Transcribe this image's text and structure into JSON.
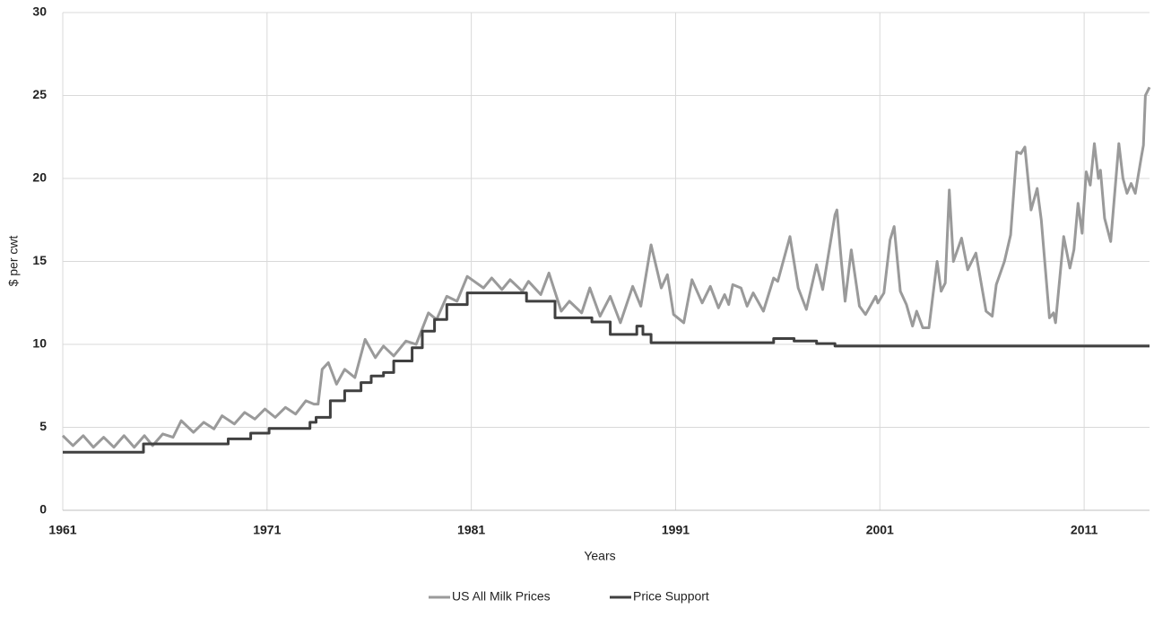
{
  "chart_data": {
    "type": "line",
    "x_label": "Years",
    "y_label": "$ per cwt",
    "xlim": [
      1961,
      2014.2
    ],
    "xticks": [
      1961,
      1971,
      1981,
      1991,
      2001,
      2011
    ],
    "ylim": [
      0,
      30
    ],
    "yticks": [
      0,
      5,
      10,
      15,
      20,
      25,
      30
    ],
    "grid": true,
    "legend": "bottom",
    "series": [
      {
        "name": "US All Milk Prices",
        "color": "#9a9a9a",
        "x": [
          1961,
          1961.5,
          1962,
          1962.5,
          1963,
          1963.5,
          1964,
          1964.5,
          1965,
          1965.4,
          1965.9,
          1966.4,
          1966.8,
          1967.4,
          1967.9,
          1968.4,
          1968.8,
          1969.4,
          1969.9,
          1970.4,
          1970.9,
          1971.4,
          1971.9,
          1972.4,
          1972.9,
          1973.3,
          1973.5,
          1973.7,
          1974.0,
          1974.4,
          1974.8,
          1975.3,
          1975.8,
          1976.3,
          1976.7,
          1977.2,
          1977.8,
          1978.3,
          1978.9,
          1979.3,
          1979.8,
          1980.3,
          1980.8,
          1981.6,
          1982.0,
          1982.5,
          1982.9,
          1983.5,
          1983.8,
          1984.4,
          1984.8,
          1985.4,
          1985.8,
          1986.4,
          1986.8,
          1987.3,
          1987.8,
          1988.3,
          1988.9,
          1989.3,
          1989.8,
          1990.3,
          1990.6,
          1990.9,
          1991.4,
          1991.8,
          1992.3,
          1992.7,
          1993.1,
          1993.4,
          1993.6,
          1993.8,
          1994.2,
          1994.5,
          1994.8,
          1995.3,
          1995.8,
          1996.0,
          1996.6,
          1997.0,
          1997.4,
          1997.9,
          1998.2,
          1998.8,
          1998.9,
          1999.1,
          1999.3,
          1999.6,
          2000.0,
          2000.3,
          2000.8,
          2000.9,
          2001.2,
          2001.5,
          2001.7,
          2002.0,
          2002.3,
          2002.6,
          2002.8,
          2003.1,
          2003.4,
          2003.8,
          2004.0,
          2004.2,
          2004.4,
          2004.6,
          2005.0,
          2005.3,
          2005.7,
          2006.2,
          2006.5,
          2006.7,
          2007.1,
          2007.4,
          2007.7,
          2007.9,
          2008.1,
          2008.4,
          2008.7,
          2008.9,
          2009.3,
          2009.5,
          2009.6,
          2010.0,
          2010.3,
          2010.5,
          2010.7,
          2010.9,
          2011.1,
          2011.3,
          2011.5,
          2011.7,
          2011.8,
          2012.0,
          2012.3,
          2012.7,
          2012.9,
          2013.1,
          2013.3,
          2013.5,
          2013.8,
          2013.9,
          2014.0,
          2014.2
        ],
        "values": [
          4.5,
          3.9,
          4.5,
          3.8,
          4.4,
          3.8,
          4.5,
          3.8,
          4.5,
          3.9,
          4.6,
          4.4,
          5.4,
          4.7,
          5.3,
          4.9,
          5.7,
          5.2,
          5.9,
          5.5,
          6.1,
          5.6,
          6.2,
          5.8,
          6.6,
          6.4,
          6.4,
          8.5,
          8.9,
          7.6,
          8.5,
          8.0,
          10.3,
          9.2,
          9.9,
          9.3,
          10.2,
          10.0,
          11.9,
          11.5,
          12.9,
          12.6,
          14.1,
          13.4,
          14.0,
          13.3,
          13.9,
          13.2,
          13.8,
          13.0,
          14.3,
          12.0,
          12.6,
          11.9,
          13.4,
          11.7,
          12.9,
          11.3,
          13.5,
          12.3,
          16.0,
          13.4,
          14.2,
          11.8,
          11.3,
          13.9,
          12.5,
          13.5,
          12.2,
          13.0,
          12.4,
          13.6,
          13.4,
          12.3,
          13.1,
          12.0,
          14.0,
          13.8,
          16.5,
          13.4,
          12.1,
          14.8,
          13.3,
          17.8,
          18.1,
          15.2,
          12.6,
          15.7,
          12.3,
          11.8,
          12.9,
          12.5,
          13.1,
          16.3,
          17.1,
          13.2,
          12.4,
          11.1,
          12.0,
          11.0,
          11.0,
          15.0,
          13.2,
          13.7,
          19.3,
          15.0,
          16.4,
          14.5,
          15.5,
          12.0,
          11.7,
          13.6,
          15.0,
          16.6,
          21.6,
          21.5,
          21.9,
          18.1,
          19.4,
          17.5,
          11.6,
          11.9,
          11.3,
          16.5,
          14.6,
          15.7,
          18.5,
          16.7,
          20.4,
          19.6,
          22.1,
          20.0,
          20.5,
          17.6,
          16.2,
          22.1,
          20.0,
          19.1,
          19.7,
          19.1,
          21.3,
          22.0,
          25.0,
          25.5
        ]
      },
      {
        "name": "Price Support",
        "color": "#404040",
        "x": [
          1961,
          1964.95,
          1964.95,
          1969.1,
          1969.1,
          1970.2,
          1970.2,
          1971.1,
          1971.1,
          1973.1,
          1973.1,
          1973.4,
          1973.4,
          1974.1,
          1974.1,
          1974.8,
          1974.8,
          1975.6,
          1975.6,
          1976.1,
          1976.1,
          1976.7,
          1976.7,
          1977.2,
          1977.2,
          1978.1,
          1978.1,
          1978.6,
          1978.6,
          1979.2,
          1979.2,
          1979.8,
          1979.8,
          1980.8,
          1980.8,
          1983.7,
          1983.7,
          1985.1,
          1985.1,
          1986.9,
          1986.9,
          1987.8,
          1987.8,
          1989.1,
          1989.1,
          1989.4,
          1989.4,
          1989.8,
          1989.8,
          1995.8,
          1995.8,
          1996.8,
          1996.8,
          1997.9,
          1997.9,
          1998.8,
          1998.8,
          2014.2
        ],
        "values": [
          3.5,
          3.5,
          4.0,
          4.0,
          4.3,
          4.3,
          4.65,
          4.65,
          4.93,
          4.93,
          5.3,
          5.3,
          5.6,
          5.6,
          6.6,
          6.6,
          7.2,
          7.2,
          7.7,
          7.7,
          8.1,
          8.1,
          8.3,
          8.3,
          9.0,
          9.0,
          9.8,
          9.8,
          10.8,
          10.8,
          11.5,
          11.5,
          12.4,
          12.4,
          13.1,
          13.1,
          12.6,
          12.6,
          11.6,
          11.6,
          11.35,
          11.35,
          10.6,
          10.6,
          11.1,
          11.1,
          10.6,
          10.6,
          10.1,
          10.1,
          10.35,
          10.35,
          10.2,
          10.2,
          10.05,
          10.05,
          9.9,
          9.9
        ]
      }
    ]
  }
}
